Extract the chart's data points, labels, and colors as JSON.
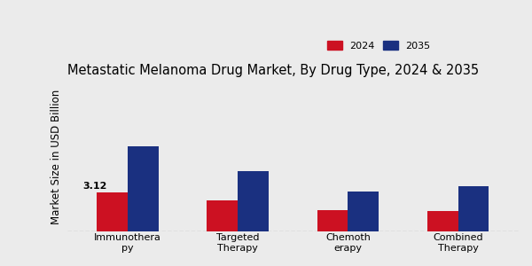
{
  "title": "Metastatic Melanoma Drug Market, By Drug Type, 2024 & 2035",
  "ylabel": "Market Size in USD Billion",
  "categories": [
    "Immunothera\npy",
    "Targeted\nTherapy",
    "Chemoth\nerapy",
    "Combined\nTherapy"
  ],
  "values_2024": [
    3.12,
    2.5,
    1.7,
    1.6
  ],
  "values_2035": [
    6.8,
    4.8,
    3.2,
    3.6
  ],
  "color_2024": "#cc1122",
  "color_2035": "#1a3080",
  "annotation_label": "3.12",
  "annotation_index": 0,
  "background_color": "#ebebeb",
  "bar_width": 0.28,
  "ylim": [
    0,
    12
  ],
  "legend_labels": [
    "2024",
    "2035"
  ],
  "title_fontsize": 10.5,
  "axis_label_fontsize": 8.5,
  "tick_fontsize": 8
}
